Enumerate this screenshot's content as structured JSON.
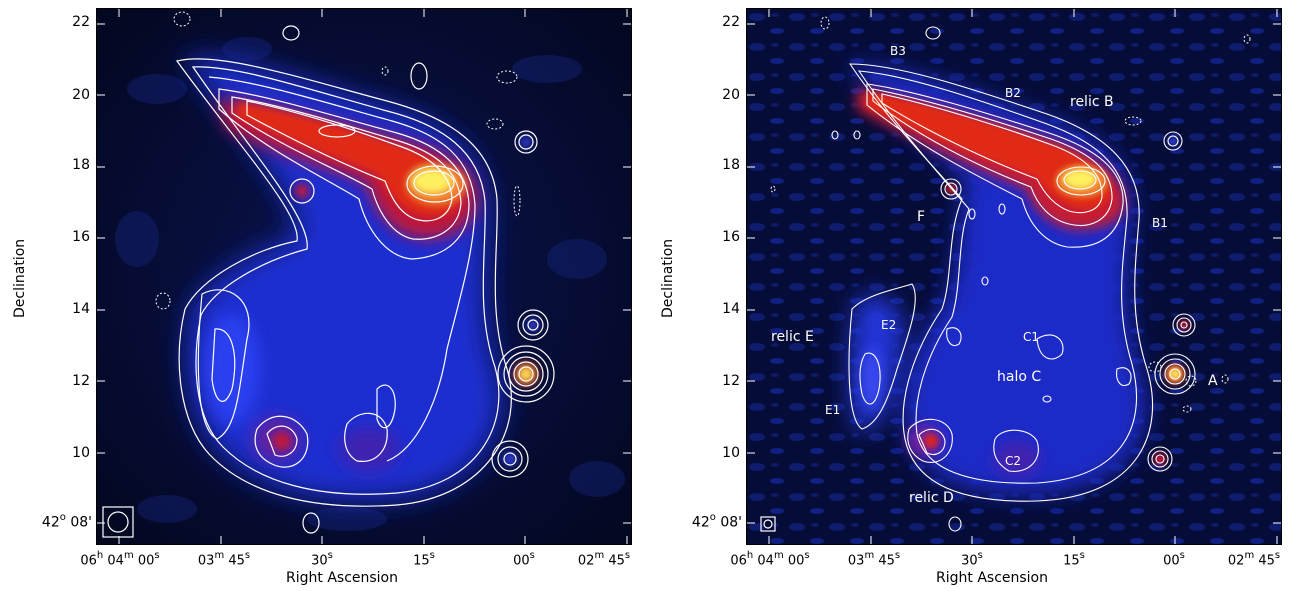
{
  "left_panel": {
    "x_axis_label": "Right Ascension",
    "y_axis_label": "Declination",
    "y_ticks": [
      {
        "value": "22",
        "dec_min": 22
      },
      {
        "value": "20",
        "dec_min": 20
      },
      {
        "value": "18",
        "dec_min": 18
      },
      {
        "value": "16",
        "dec_min": 16
      },
      {
        "value": "14",
        "dec_min": 14
      },
      {
        "value": "12",
        "dec_min": 12
      },
      {
        "value": "10",
        "dec_min": 10
      }
    ],
    "y_tick_bottom": {
      "deg": "42",
      "deg_unit": "o",
      "min": "08",
      "min_unit": "'"
    },
    "x_ticks": [
      {
        "h": "06",
        "m": "04",
        "s": "00"
      },
      {
        "m": "03",
        "s": "45"
      },
      {
        "s": "30"
      },
      {
        "s": "15"
      },
      {
        "s": "00"
      },
      {
        "m": "02",
        "s": "45"
      }
    ]
  },
  "right_panel": {
    "x_axis_label": "Right Ascension",
    "y_axis_label": "Declination",
    "annotations": {
      "b3": "B3",
      "b2": "B2",
      "relic_b": "relic B",
      "b1": "B1",
      "f": "F",
      "relic_e": "relic E",
      "e2": "E2",
      "e1": "E1",
      "c1": "C1",
      "halo_c": "halo C",
      "a": "A",
      "c2": "C2",
      "relic_d": "relic D"
    }
  },
  "colors": {
    "background_dark": "#050a2a",
    "emission_blue": "#2030d8",
    "emission_red": "#d81818",
    "emission_yellow": "#fff060",
    "contour": "#ffffff"
  }
}
